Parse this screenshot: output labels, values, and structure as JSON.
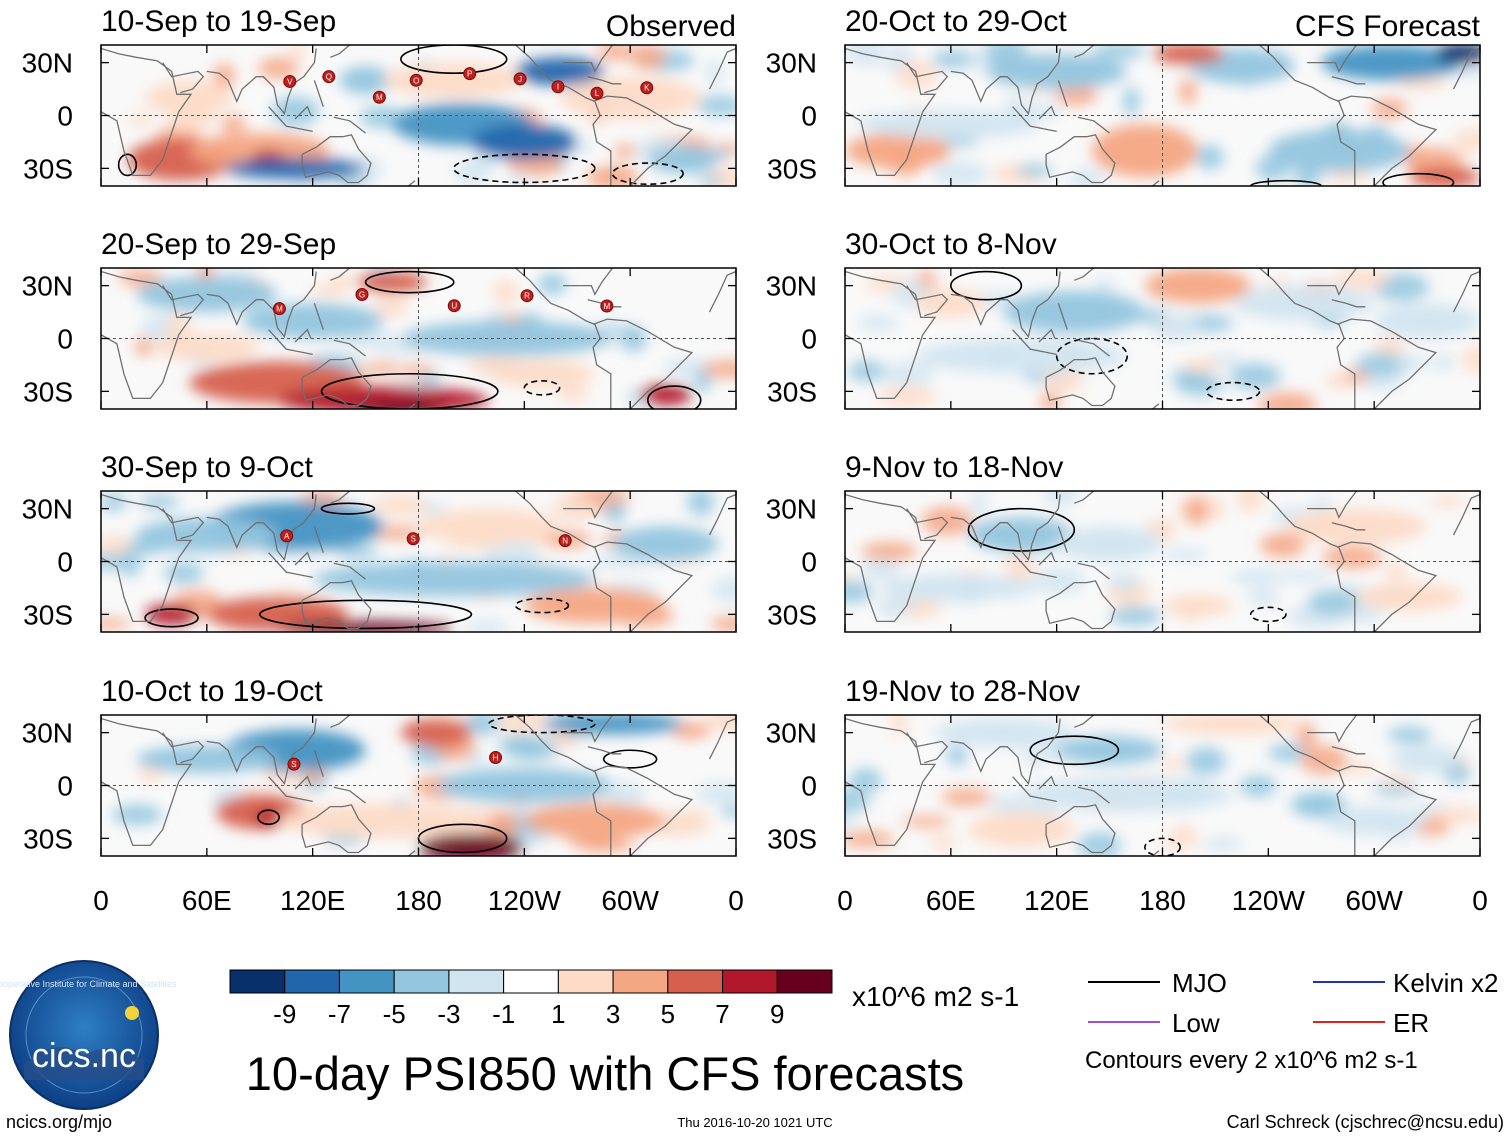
{
  "chart_data": {
    "type": "heatmap",
    "title": "10-day PSI850 with CFS forecasts",
    "variable": "PSI850 anomaly",
    "units": "x10^6 m2 s-1",
    "contour_interval_text": "Contours every 2 x10^6 m2 s-1",
    "x_ticks": [
      "0",
      "60E",
      "120E",
      "180",
      "120W",
      "60W",
      "0"
    ],
    "y_ticks": [
      "30N",
      "0",
      "30S"
    ],
    "xlim": [
      0,
      360
    ],
    "ylim": [
      -40,
      40
    ],
    "colorbar": {
      "labels": [
        "-9",
        "-7",
        "-5",
        "-3",
        "-1",
        "1",
        "3",
        "5",
        "7",
        "9"
      ],
      "colors": [
        "#08306b",
        "#2166ac",
        "#4393c3",
        "#92c5de",
        "#d1e5f0",
        "#ffffff",
        "#fddbc7",
        "#f4a582",
        "#d6604d",
        "#b2182b",
        "#67001f"
      ]
    },
    "legend": [
      {
        "label": "MJO",
        "color": "#000000"
      },
      {
        "label": "Kelvin x2",
        "color": "#1f2fbf"
      },
      {
        "label": "Low",
        "color": "#9b4dd6"
      },
      {
        "label": "ER",
        "color": "#e0201c"
      }
    ],
    "columns": [
      {
        "header": "Observed",
        "panels": [
          {
            "period": "10-Sep to 19-Sep",
            "storms": [
              "V",
              "Q",
              "M",
              "O",
              "P",
              "J",
              "I",
              "L",
              "K"
            ]
          },
          {
            "period": "20-Sep to 29-Sep",
            "storms": [
              "M",
              "G",
              "U",
              "R",
              "M"
            ]
          },
          {
            "period": "30-Sep to 9-Oct",
            "storms": [
              "A",
              "S",
              "N"
            ]
          },
          {
            "period": "10-Oct to 19-Oct",
            "storms": [
              "S",
              "H"
            ]
          }
        ]
      },
      {
        "header": "CFS Forecast",
        "panels": [
          {
            "period": "20-Oct to 29-Oct",
            "storms": []
          },
          {
            "period": "30-Oct to 8-Nov",
            "storms": []
          },
          {
            "period": "9-Nov to 18-Nov",
            "storms": []
          },
          {
            "period": "19-Nov to 28-Nov",
            "storms": []
          }
        ]
      }
    ]
  },
  "logo": {
    "text": "cics.nc",
    "ring_text": "Cooperative Institute for Climate and Satellites"
  },
  "footer": {
    "left": "ncics.org/mjo",
    "center": "Thu 2016-10-20 1021 UTC",
    "right": "Carl Schreck (cjschrec@ncsu.edu)"
  }
}
